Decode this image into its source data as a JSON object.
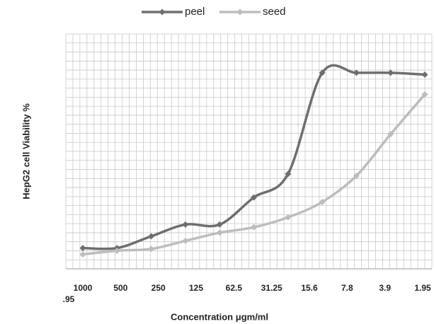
{
  "chart_data": {
    "type": "line",
    "y_label": "HepG2 cell Viability %",
    "x_label": "Concentration μgm/ml",
    "categories": [
      "1000",
      "500",
      "250",
      "125",
      "62.5",
      "31.25",
      "15.6",
      "7.8",
      "3.9",
      "1.95",
      ".95"
    ],
    "series": [
      {
        "name": "peel",
        "color": "#6e6e6e",
        "values": [
          11.5,
          11.5,
          18,
          24.5,
          24.5,
          39.5,
          52.5,
          108.5,
          108.5,
          108.5,
          107.5
        ]
      },
      {
        "name": "seed",
        "color": "#bdbdbd",
        "values": [
          8,
          10,
          11,
          15.5,
          20,
          23,
          28.5,
          37,
          51.5,
          74.5,
          96.5
        ]
      }
    ],
    "ylim": [
      0,
      130
    ],
    "yticks": [
      0,
      5,
      10,
      15,
      20,
      25,
      30,
      35,
      40,
      45,
      50,
      55,
      60,
      65,
      70,
      75,
      80,
      85,
      90,
      95,
      100,
      105,
      110,
      115,
      120,
      125,
      130
    ],
    "grid": true
  }
}
